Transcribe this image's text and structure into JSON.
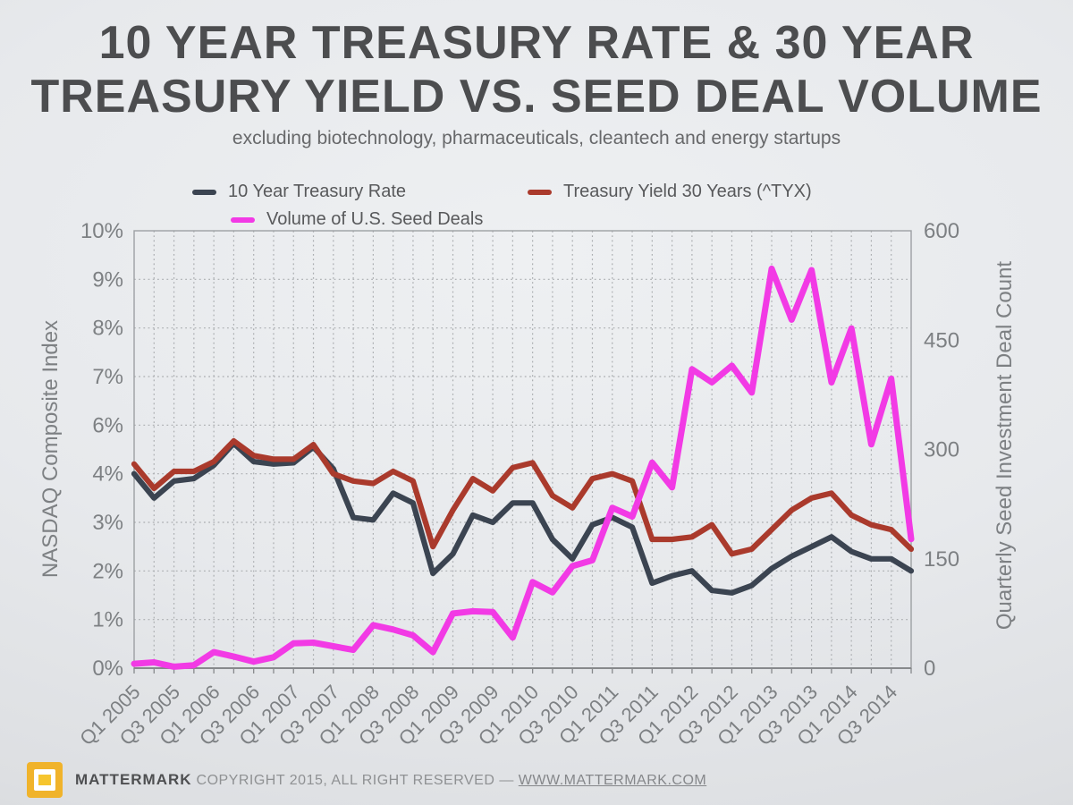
{
  "title_line1": "10 YEAR TREASURY RATE & 30 YEAR",
  "title_line2": "TREASURY YIELD VS. SEED DEAL VOLUME",
  "subtitle": "excluding biotechnology, pharmaceuticals, cleantech and energy startups",
  "footer": {
    "brand": "MATTERMARK",
    "copyright": " COPYRIGHT 2015, ALL RIGHT RESERVED — ",
    "link": "WWW.MATTERMARK.COM"
  },
  "chart_data": {
    "type": "line",
    "categories": [
      "Q1 2005",
      "Q2 2005",
      "Q3 2005",
      "Q4 2005",
      "Q1 2006",
      "Q2 2006",
      "Q3 2006",
      "Q4 2006",
      "Q1 2007",
      "Q2 2007",
      "Q3 2007",
      "Q4 2007",
      "Q1 2008",
      "Q2 2008",
      "Q3 2008",
      "Q4 2008",
      "Q1 2009",
      "Q2 2009",
      "Q3 2009",
      "Q4 2009",
      "Q1 2010",
      "Q2 2010",
      "Q3 2010",
      "Q4 2010",
      "Q1 2011",
      "Q2 2011",
      "Q3 2011",
      "Q4 2011",
      "Q1 2012",
      "Q2 2012",
      "Q3 2012",
      "Q4 2012",
      "Q1 2013",
      "Q2 2013",
      "Q3 2013",
      "Q4 2013",
      "Q1 2014",
      "Q2 2014",
      "Q3 2014",
      "Q4 2014"
    ],
    "x_tick_step": 2,
    "grid": "dotted",
    "legend_position": "top",
    "series": [
      {
        "name": "10 Year Treasury Rate",
        "axis": "left",
        "color": "#3b4451",
        "values": [
          4.0,
          3.5,
          3.85,
          3.9,
          4.35,
          5.25,
          4.5,
          4.4,
          4.45,
          5.1,
          4.2,
          3.1,
          3.05,
          3.6,
          3.4,
          1.95,
          2.35,
          3.15,
          3.0,
          3.4,
          3.4,
          2.65,
          2.25,
          2.95,
          3.1,
          2.9,
          1.75,
          1.9,
          2.0,
          1.6,
          1.55,
          1.7,
          2.05,
          2.3,
          2.5,
          2.7,
          2.4,
          2.25,
          2.25,
          2.0
        ]
      },
      {
        "name": "Treasury Yield 30 Years (^TYX)",
        "axis": "left",
        "color": "#aa3a2c",
        "values": [
          4.4,
          3.7,
          4.1,
          4.1,
          4.5,
          5.35,
          4.75,
          4.6,
          4.6,
          5.2,
          4.0,
          3.85,
          3.8,
          4.1,
          3.85,
          2.5,
          3.25,
          3.9,
          3.65,
          4.25,
          4.45,
          3.55,
          3.3,
          3.9,
          4.0,
          3.85,
          2.65,
          2.65,
          2.7,
          2.95,
          2.35,
          2.45,
          2.85,
          3.25,
          3.5,
          3.6,
          3.15,
          2.95,
          2.85,
          2.45
        ]
      },
      {
        "name": "Volume of U.S. Seed Deals",
        "axis": "right",
        "color": "#f23ae5",
        "values": [
          6,
          8,
          2,
          4,
          22,
          16,
          9,
          15,
          34,
          35,
          30,
          25,
          59,
          53,
          45,
          22,
          75,
          78,
          77,
          42,
          118,
          104,
          140,
          148,
          220,
          208,
          282,
          248,
          410,
          392,
          415,
          378,
          548,
          478,
          546,
          392,
          466,
          307,
          397,
          177
        ]
      }
    ],
    "left_axis": {
      "title": "NASDAQ Composite Index",
      "tick_labels_bottom_to_top": [
        "0%",
        "1%",
        "2%",
        "3%",
        "4%",
        "6%",
        "7%",
        "8%",
        "9%",
        "10%"
      ],
      "tick_values_bottom_to_top": [
        0,
        1,
        2,
        3,
        4,
        6,
        7,
        8,
        9,
        10
      ]
    },
    "right_axis": {
      "title": "Quarterly Seed Investment Deal Count",
      "tick_labels_bottom_to_top": [
        "0",
        "150",
        "300",
        "450",
        "600"
      ],
      "range": [
        0,
        600
      ]
    }
  }
}
